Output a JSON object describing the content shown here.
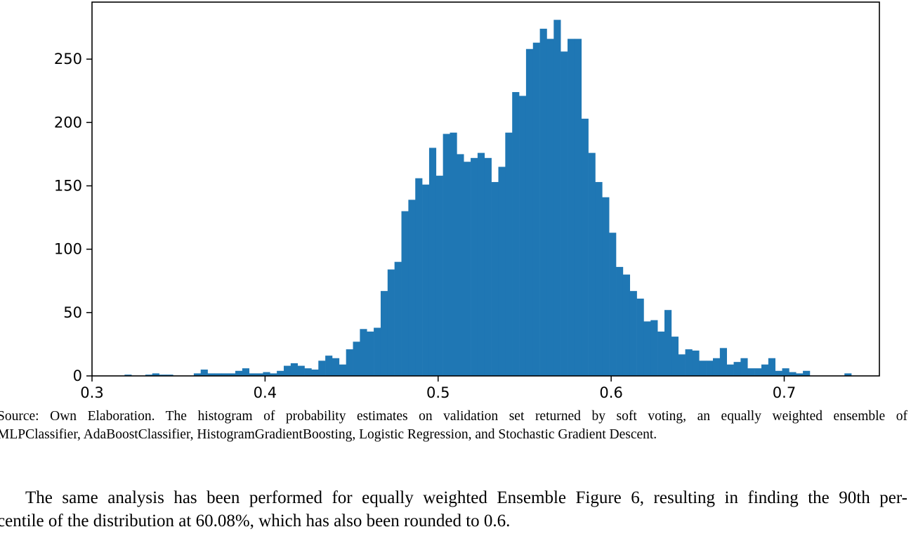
{
  "chart_data": {
    "type": "bar",
    "title": "",
    "xlabel": "",
    "ylabel": "",
    "xlim": [
      0.3,
      0.755
    ],
    "ylim": [
      0,
      295
    ],
    "xticks": [
      0.3,
      0.4,
      0.5,
      0.6,
      0.7
    ],
    "xtick_labels": [
      "0.3",
      "0.4",
      "0.5",
      "0.6",
      "0.7"
    ],
    "yticks": [
      0,
      50,
      100,
      150,
      200,
      250
    ],
    "ytick_labels": [
      "0",
      "50",
      "100",
      "150",
      "200",
      "250"
    ],
    "grid": false,
    "legend": false,
    "bar_color": "#1f77b4",
    "bin_start": 0.3188,
    "bin_width": 0.004,
    "counts": [
      1,
      0,
      0,
      1,
      2,
      1,
      1,
      0,
      0,
      0,
      2,
      5,
      2,
      2,
      2,
      2,
      4,
      6,
      2,
      2,
      3,
      2,
      4,
      8,
      10,
      8,
      6,
      5,
      12,
      16,
      14,
      9,
      21,
      27,
      37,
      35,
      38,
      67,
      84,
      90,
      130,
      139,
      156,
      151,
      180,
      158,
      191,
      192,
      175,
      169,
      172,
      176,
      172,
      153,
      165,
      192,
      224,
      221,
      258,
      263,
      274,
      266,
      281,
      256,
      266,
      266,
      203,
      176,
      153,
      141,
      113,
      86,
      80,
      67,
      61,
      43,
      44,
      35,
      52,
      31,
      17,
      21,
      20,
      12,
      12,
      14,
      22,
      9,
      11,
      14,
      6,
      6,
      9,
      14,
      4,
      6,
      3,
      2,
      4,
      0,
      0,
      0,
      0,
      0,
      2
    ]
  },
  "caption": {
    "line1": "Source:  Own Elaboration.  The histogram of probability estimates on validation set returned by soft voting, an equally weighted ensemble of",
    "line2": "MLPClassifier, AdaBoostClassifier, HistogramGradientBoosting, Logistic Regression, and Stochastic Gradient Descent."
  },
  "body": {
    "line1": "The same analysis has been performed for equally weighted Ensemble Figure 6, resulting in finding the 90th per-",
    "line2": "centile of the distribution at 60.08%, which has also been rounded to 0.6."
  }
}
